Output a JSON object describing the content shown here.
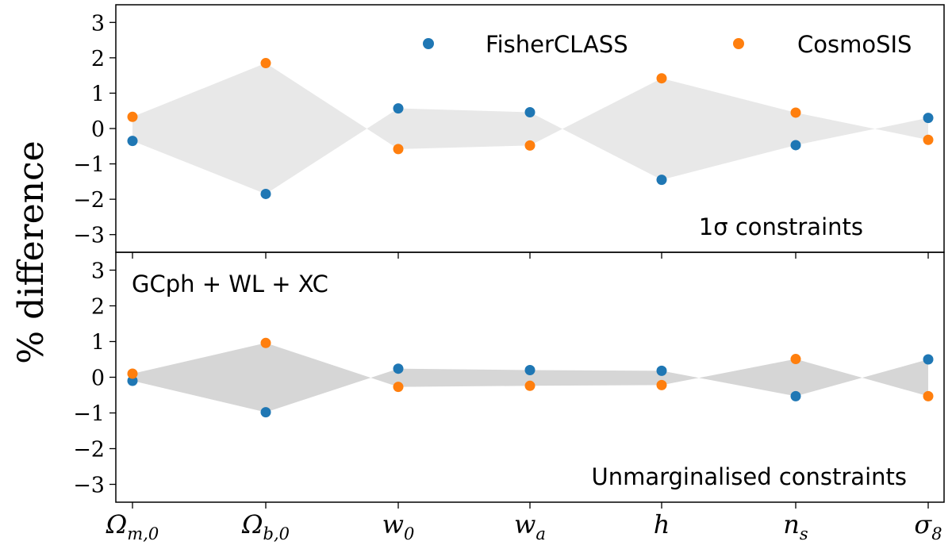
{
  "chart_data": {
    "type": "scatter",
    "ylabel": "% difference",
    "categories": [
      "Ωm,0",
      "Ωb,0",
      "w0",
      "wa",
      "h",
      "ns",
      "σ8"
    ],
    "categories_display": [
      {
        "main": "Ω",
        "sub": "m,0"
      },
      {
        "main": "Ω",
        "sub": "b,0"
      },
      {
        "main": "w",
        "sub": "0"
      },
      {
        "main": "w",
        "sub": "a"
      },
      {
        "main": "h",
        "sub": ""
      },
      {
        "main": "n",
        "sub": "s"
      },
      {
        "main": "σ",
        "sub": "8"
      }
    ],
    "legend": [
      {
        "name": "FisherCLASS",
        "color": "#1f77b4"
      },
      {
        "name": "CosmoSIS",
        "color": "#ff7f0e"
      }
    ],
    "ylim": [
      -3.5,
      3.5
    ],
    "yticks": [
      3,
      2,
      1,
      0,
      -1,
      -2,
      -3
    ],
    "ytick_labels": [
      "3",
      "2",
      "1",
      "0",
      "−1",
      "−2",
      "−3"
    ],
    "fill_colors": [
      "#e8e8e8",
      "#d6d6d6"
    ],
    "panels": [
      {
        "name": "top",
        "annotation": "1σ constraints",
        "series": [
          {
            "name": "FisherCLASS",
            "values": [
              -0.35,
              -1.85,
              0.57,
              0.46,
              -1.45,
              -0.47,
              0.3
            ]
          },
          {
            "name": "CosmoSIS",
            "values": [
              0.33,
              1.85,
              -0.58,
              -0.48,
              1.42,
              0.45,
              -0.32
            ]
          }
        ]
      },
      {
        "name": "bottom",
        "label": "GCph + WL + XC",
        "annotation": "Unmarginalised constraints",
        "series": [
          {
            "name": "FisherCLASS",
            "values": [
              -0.1,
              -0.98,
              0.24,
              0.2,
              0.18,
              -0.53,
              0.5
            ]
          },
          {
            "name": "CosmoSIS",
            "values": [
              0.1,
              0.96,
              -0.27,
              -0.24,
              -0.22,
              0.51,
              -0.53
            ]
          }
        ]
      }
    ]
  }
}
